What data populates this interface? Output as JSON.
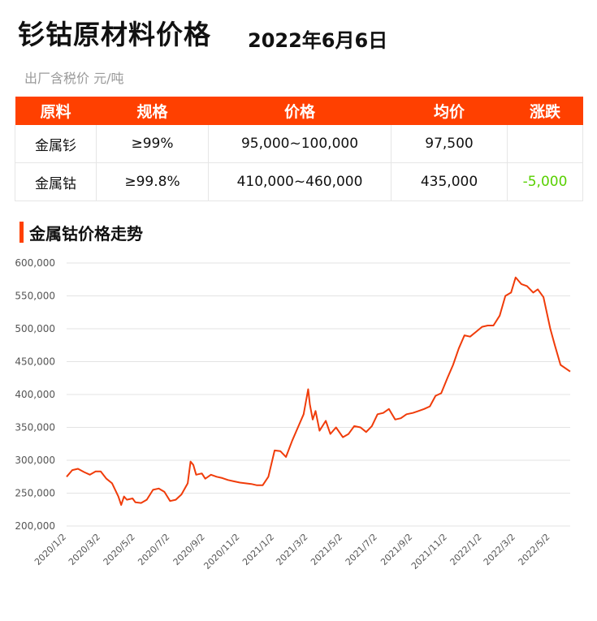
{
  "header": {
    "title": "钐钴原材料价格",
    "date": "2022年6月6日",
    "unit_note": "出厂含税价 元/吨"
  },
  "table": {
    "columns": [
      "原料",
      "规格",
      "价格",
      "均价",
      "涨跌"
    ],
    "rows": [
      [
        "金属钐",
        "≥99%",
        "95,000~100,000",
        "97,500",
        ""
      ],
      [
        "金属钴",
        "≥99.8%",
        "410,000~460,000",
        "435,000",
        "-5,000"
      ]
    ]
  },
  "section": {
    "title": "金属钴价格走势"
  },
  "colors": {
    "accent": "#ff4000",
    "negative": "#58d000",
    "line": "#f03c0a"
  },
  "chart_data": {
    "type": "line",
    "title": "",
    "xlabel": "",
    "ylabel": "",
    "ylim": [
      200000,
      600000
    ],
    "yticks": [
      "600,000",
      "550,000",
      "500,000",
      "450,000",
      "400,000",
      "350,000",
      "300,000",
      "250,000",
      "200,000"
    ],
    "xticks": [
      "2020/1/2",
      "2020/3/2",
      "2020/5/2",
      "2020/7/2",
      "2020/9/2",
      "2020/11/2",
      "2021/1/2",
      "2021/3/2",
      "2021/5/2",
      "2021/7/2",
      "2021/9/2",
      "2021/11/2",
      "2022/1/2",
      "2022/3/2",
      "2022/5/2"
    ],
    "grid": true,
    "series": [
      {
        "points": [
          [
            "2020/1/2",
            275000
          ],
          [
            "2020/1/12",
            285000
          ],
          [
            "2020/1/22",
            287000
          ],
          [
            "2020/2/2",
            282000
          ],
          [
            "2020/2/12",
            278000
          ],
          [
            "2020/2/22",
            283000
          ],
          [
            "2020/3/2",
            283000
          ],
          [
            "2020/3/12",
            272000
          ],
          [
            "2020/3/22",
            265000
          ],
          [
            "2020/4/2",
            245000
          ],
          [
            "2020/4/7",
            232000
          ],
          [
            "2020/4/12",
            245000
          ],
          [
            "2020/4/17",
            240000
          ],
          [
            "2020/4/27",
            242000
          ],
          [
            "2020/5/2",
            236000
          ],
          [
            "2020/5/12",
            235000
          ],
          [
            "2020/5/22",
            240000
          ],
          [
            "2020/6/2",
            255000
          ],
          [
            "2020/6/12",
            257000
          ],
          [
            "2020/6/22",
            252000
          ],
          [
            "2020/7/2",
            238000
          ],
          [
            "2020/7/12",
            240000
          ],
          [
            "2020/7/22",
            248000
          ],
          [
            "2020/8/2",
            265000
          ],
          [
            "2020/8/7",
            298000
          ],
          [
            "2020/8/12",
            293000
          ],
          [
            "2020/8/17",
            278000
          ],
          [
            "2020/8/27",
            280000
          ],
          [
            "2020/9/2",
            272000
          ],
          [
            "2020/9/12",
            278000
          ],
          [
            "2020/9/22",
            275000
          ],
          [
            "2020/10/2",
            273000
          ],
          [
            "2020/10/12",
            270000
          ],
          [
            "2020/10/22",
            268000
          ],
          [
            "2020/11/2",
            266000
          ],
          [
            "2020/11/12",
            265000
          ],
          [
            "2020/11/22",
            264000
          ],
          [
            "2020/12/2",
            262000
          ],
          [
            "2020/12/12",
            262000
          ],
          [
            "2020/12/22",
            275000
          ],
          [
            "2021/1/2",
            315000
          ],
          [
            "2021/1/12",
            314000
          ],
          [
            "2021/1/22",
            305000
          ],
          [
            "2021/2/2",
            330000
          ],
          [
            "2021/2/12",
            350000
          ],
          [
            "2021/2/22",
            370000
          ],
          [
            "2021/3/2",
            408000
          ],
          [
            "2021/3/5",
            385000
          ],
          [
            "2021/3/10",
            362000
          ],
          [
            "2021/3/15",
            375000
          ],
          [
            "2021/3/22",
            345000
          ],
          [
            "2021/4/2",
            360000
          ],
          [
            "2021/4/10",
            340000
          ],
          [
            "2021/4/20",
            350000
          ],
          [
            "2021/5/2",
            335000
          ],
          [
            "2021/5/12",
            340000
          ],
          [
            "2021/5/22",
            352000
          ],
          [
            "2021/6/2",
            350000
          ],
          [
            "2021/6/12",
            343000
          ],
          [
            "2021/6/22",
            352000
          ],
          [
            "2021/7/2",
            370000
          ],
          [
            "2021/7/12",
            372000
          ],
          [
            "2021/7/22",
            378000
          ],
          [
            "2021/8/2",
            362000
          ],
          [
            "2021/8/12",
            364000
          ],
          [
            "2021/8/22",
            370000
          ],
          [
            "2021/9/2",
            372000
          ],
          [
            "2021/9/12",
            375000
          ],
          [
            "2021/9/22",
            378000
          ],
          [
            "2021/10/2",
            382000
          ],
          [
            "2021/10/12",
            398000
          ],
          [
            "2021/10/22",
            402000
          ],
          [
            "2021/11/2",
            425000
          ],
          [
            "2021/11/12",
            445000
          ],
          [
            "2021/11/22",
            470000
          ],
          [
            "2021/12/2",
            490000
          ],
          [
            "2021/12/12",
            488000
          ],
          [
            "2021/12/22",
            495000
          ],
          [
            "2022/1/2",
            503000
          ],
          [
            "2022/1/12",
            505000
          ],
          [
            "2022/1/22",
            505000
          ],
          [
            "2022/2/2",
            520000
          ],
          [
            "2022/2/12",
            550000
          ],
          [
            "2022/2/22",
            555000
          ],
          [
            "2022/3/2",
            578000
          ],
          [
            "2022/3/12",
            568000
          ],
          [
            "2022/3/22",
            565000
          ],
          [
            "2022/4/2",
            555000
          ],
          [
            "2022/4/10",
            560000
          ],
          [
            "2022/4/20",
            548000
          ],
          [
            "2022/5/2",
            500000
          ],
          [
            "2022/5/10",
            475000
          ],
          [
            "2022/5/20",
            445000
          ],
          [
            "2022/6/6",
            435000
          ]
        ]
      }
    ]
  }
}
